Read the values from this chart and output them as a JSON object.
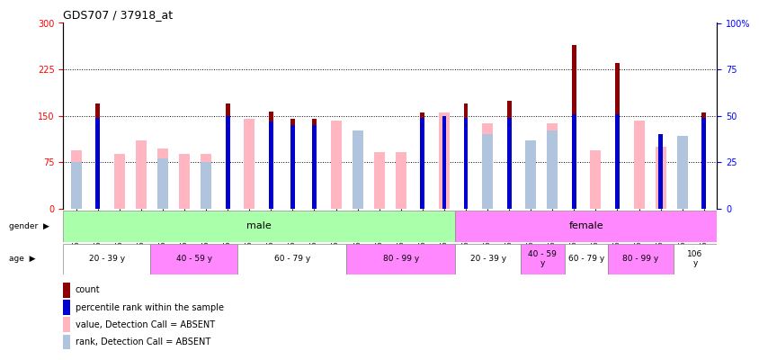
{
  "title": "GDS707 / 37918_at",
  "samples": [
    "GSM27015",
    "GSM27016",
    "GSM27018",
    "GSM27021",
    "GSM27023",
    "GSM27024",
    "GSM27025",
    "GSM27027",
    "GSM27028",
    "GSM27031",
    "GSM27032",
    "GSM27034",
    "GSM27035",
    "GSM27036",
    "GSM27038",
    "GSM27040",
    "GSM27042",
    "GSM27043",
    "GSM27017",
    "GSM27019",
    "GSM27020",
    "GSM27022",
    "GSM27026",
    "GSM27029",
    "GSM27030",
    "GSM27033",
    "GSM27037",
    "GSM27039",
    "GSM27041",
    "GSM27044"
  ],
  "count": [
    0,
    170,
    0,
    0,
    0,
    0,
    0,
    170,
    0,
    157,
    145,
    145,
    0,
    0,
    0,
    0,
    155,
    0,
    170,
    0,
    175,
    0,
    0,
    265,
    0,
    235,
    0,
    0,
    0,
    155
  ],
  "rank_pct": [
    0,
    49,
    0,
    0,
    0,
    0,
    0,
    50,
    0,
    47,
    45,
    45,
    0,
    0,
    0,
    0,
    49,
    50,
    49,
    0,
    49,
    0,
    0,
    51,
    0,
    51,
    0,
    40,
    0,
    49
  ],
  "absent_value": [
    95,
    0,
    88,
    110,
    98,
    88,
    88,
    0,
    145,
    0,
    0,
    0,
    142,
    125,
    92,
    92,
    0,
    155,
    0,
    138,
    0,
    107,
    138,
    0,
    95,
    0,
    142,
    100,
    118,
    0
  ],
  "absent_rank": [
    25,
    0,
    0,
    0,
    27,
    0,
    25,
    0,
    0,
    0,
    0,
    0,
    0,
    42,
    0,
    0,
    0,
    0,
    0,
    40,
    0,
    37,
    42,
    0,
    0,
    0,
    0,
    0,
    39,
    0
  ],
  "gender_groups": [
    {
      "label": "male",
      "start": 0,
      "end": 18,
      "color": "#aaffaa"
    },
    {
      "label": "female",
      "start": 18,
      "end": 30,
      "color": "#ff88ff"
    }
  ],
  "age_groups": [
    {
      "label": "20 - 39 y",
      "start": 0,
      "end": 4,
      "color": "#ffffff"
    },
    {
      "label": "40 - 59 y",
      "start": 4,
      "end": 8,
      "color": "#ff88ff"
    },
    {
      "label": "60 - 79 y",
      "start": 8,
      "end": 13,
      "color": "#ffffff"
    },
    {
      "label": "80 - 99 y",
      "start": 13,
      "end": 18,
      "color": "#ff88ff"
    },
    {
      "label": "20 - 39 y",
      "start": 18,
      "end": 21,
      "color": "#ffffff"
    },
    {
      "label": "40 - 59\ny",
      "start": 21,
      "end": 23,
      "color": "#ff88ff"
    },
    {
      "label": "60 - 79 y",
      "start": 23,
      "end": 25,
      "color": "#ffffff"
    },
    {
      "label": "80 - 99 y",
      "start": 25,
      "end": 28,
      "color": "#ff88ff"
    },
    {
      "label": "106\ny",
      "start": 28,
      "end": 30,
      "color": "#ffffff"
    }
  ],
  "ylim_left": [
    0,
    300
  ],
  "ylim_right": [
    0,
    100
  ],
  "yticks_left": [
    0,
    75,
    150,
    225,
    300
  ],
  "yticks_right": [
    0,
    25,
    50,
    75,
    100
  ],
  "color_count": "#8B0000",
  "color_rank": "#0000CD",
  "color_absent_value": "#FFB6C1",
  "color_absent_rank": "#B0C4DE"
}
